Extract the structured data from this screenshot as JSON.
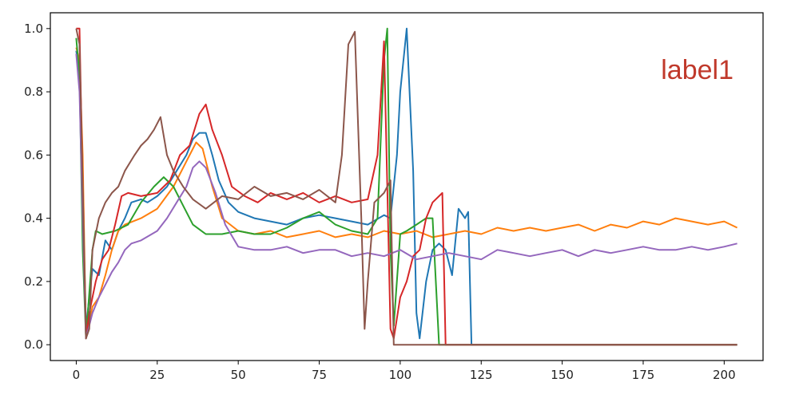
{
  "chart_data": {
    "type": "line",
    "title": "",
    "xlabel": "",
    "ylabel": "",
    "xlim": [
      -8,
      212
    ],
    "ylim": [
      -0.05,
      1.05
    ],
    "x_ticks": [
      0,
      25,
      50,
      75,
      100,
      125,
      150,
      175,
      200
    ],
    "y_ticks": [
      0.0,
      0.2,
      0.4,
      0.6,
      0.8,
      1.0
    ],
    "x_tick_labels": [
      "0",
      "25",
      "50",
      "75",
      "100",
      "125",
      "150",
      "175",
      "200"
    ],
    "y_tick_labels": [
      "0.0",
      "0.2",
      "0.4",
      "0.6",
      "0.8",
      "1.0"
    ],
    "grid": false,
    "legend": "none",
    "annotation": {
      "text": "label1",
      "color": "#c0392b"
    },
    "series": [
      {
        "color": "#1f77b4",
        "points": [
          [
            0,
            0.93
          ],
          [
            1,
            0.86
          ],
          [
            2,
            0.5
          ],
          [
            3,
            0.05
          ],
          [
            4,
            0.15
          ],
          [
            5,
            0.24
          ],
          [
            7,
            0.22
          ],
          [
            9,
            0.33
          ],
          [
            11,
            0.3
          ],
          [
            13,
            0.36
          ],
          [
            15,
            0.4
          ],
          [
            17,
            0.45
          ],
          [
            20,
            0.46
          ],
          [
            22,
            0.45
          ],
          [
            25,
            0.47
          ],
          [
            28,
            0.5
          ],
          [
            31,
            0.55
          ],
          [
            34,
            0.6
          ],
          [
            36,
            0.65
          ],
          [
            38,
            0.67
          ],
          [
            40,
            0.67
          ],
          [
            42,
            0.6
          ],
          [
            44,
            0.52
          ],
          [
            47,
            0.45
          ],
          [
            50,
            0.42
          ],
          [
            55,
            0.4
          ],
          [
            60,
            0.39
          ],
          [
            65,
            0.38
          ],
          [
            70,
            0.4
          ],
          [
            75,
            0.41
          ],
          [
            80,
            0.4
          ],
          [
            85,
            0.39
          ],
          [
            90,
            0.38
          ],
          [
            95,
            0.41
          ],
          [
            97,
            0.4
          ],
          [
            99,
            0.6
          ],
          [
            100,
            0.8
          ],
          [
            102,
            1.0
          ],
          [
            104,
            0.55
          ],
          [
            105,
            0.1
          ],
          [
            106,
            0.02
          ],
          [
            108,
            0.2
          ],
          [
            110,
            0.3
          ],
          [
            112,
            0.32
          ],
          [
            114,
            0.3
          ],
          [
            116,
            0.22
          ],
          [
            118,
            0.43
          ],
          [
            120,
            0.4
          ],
          [
            121,
            0.42
          ],
          [
            122,
            0.0
          ],
          [
            204,
            0.0
          ]
        ]
      },
      {
        "color": "#ff7f0e",
        "points": [
          [
            0,
            0.94
          ],
          [
            1,
            0.9
          ],
          [
            2,
            0.6
          ],
          [
            3,
            0.02
          ],
          [
            5,
            0.12
          ],
          [
            7,
            0.15
          ],
          [
            9,
            0.22
          ],
          [
            11,
            0.3
          ],
          [
            13,
            0.36
          ],
          [
            15,
            0.38
          ],
          [
            20,
            0.4
          ],
          [
            25,
            0.43
          ],
          [
            30,
            0.5
          ],
          [
            34,
            0.58
          ],
          [
            37,
            0.64
          ],
          [
            39,
            0.62
          ],
          [
            42,
            0.5
          ],
          [
            45,
            0.4
          ],
          [
            50,
            0.36
          ],
          [
            55,
            0.35
          ],
          [
            60,
            0.36
          ],
          [
            65,
            0.34
          ],
          [
            70,
            0.35
          ],
          [
            75,
            0.36
          ],
          [
            80,
            0.34
          ],
          [
            85,
            0.35
          ],
          [
            90,
            0.34
          ],
          [
            95,
            0.36
          ],
          [
            100,
            0.35
          ],
          [
            105,
            0.36
          ],
          [
            110,
            0.34
          ],
          [
            115,
            0.35
          ],
          [
            120,
            0.36
          ],
          [
            125,
            0.35
          ],
          [
            130,
            0.37
          ],
          [
            135,
            0.36
          ],
          [
            140,
            0.37
          ],
          [
            145,
            0.36
          ],
          [
            150,
            0.37
          ],
          [
            155,
            0.38
          ],
          [
            160,
            0.36
          ],
          [
            165,
            0.38
          ],
          [
            170,
            0.37
          ],
          [
            175,
            0.39
          ],
          [
            180,
            0.38
          ],
          [
            185,
            0.4
          ],
          [
            190,
            0.39
          ],
          [
            195,
            0.38
          ],
          [
            200,
            0.39
          ],
          [
            204,
            0.37
          ]
        ]
      },
      {
        "color": "#2ca02c",
        "points": [
          [
            0,
            0.97
          ],
          [
            1,
            0.85
          ],
          [
            2,
            0.3
          ],
          [
            3,
            0.02
          ],
          [
            5,
            0.3
          ],
          [
            6,
            0.36
          ],
          [
            8,
            0.35
          ],
          [
            12,
            0.36
          ],
          [
            16,
            0.38
          ],
          [
            20,
            0.45
          ],
          [
            24,
            0.5
          ],
          [
            27,
            0.53
          ],
          [
            30,
            0.5
          ],
          [
            33,
            0.44
          ],
          [
            36,
            0.38
          ],
          [
            40,
            0.35
          ],
          [
            45,
            0.35
          ],
          [
            50,
            0.36
          ],
          [
            55,
            0.35
          ],
          [
            60,
            0.35
          ],
          [
            65,
            0.37
          ],
          [
            70,
            0.4
          ],
          [
            75,
            0.42
          ],
          [
            80,
            0.38
          ],
          [
            85,
            0.36
          ],
          [
            90,
            0.35
          ],
          [
            93,
            0.4
          ],
          [
            95,
            0.9
          ],
          [
            96,
            1.0
          ],
          [
            97,
            0.3
          ],
          [
            98,
            0.06
          ],
          [
            100,
            0.35
          ],
          [
            102,
            0.36
          ],
          [
            105,
            0.38
          ],
          [
            108,
            0.4
          ],
          [
            110,
            0.4
          ],
          [
            112,
            0.0
          ],
          [
            204,
            0.0
          ]
        ]
      },
      {
        "color": "#d62728",
        "points": [
          [
            0,
            1.0
          ],
          [
            1,
            1.0
          ],
          [
            2,
            0.5
          ],
          [
            3,
            0.02
          ],
          [
            4,
            0.1
          ],
          [
            6,
            0.2
          ],
          [
            8,
            0.27
          ],
          [
            10,
            0.3
          ],
          [
            12,
            0.38
          ],
          [
            14,
            0.47
          ],
          [
            16,
            0.48
          ],
          [
            20,
            0.47
          ],
          [
            25,
            0.48
          ],
          [
            29,
            0.52
          ],
          [
            32,
            0.6
          ],
          [
            35,
            0.63
          ],
          [
            38,
            0.73
          ],
          [
            40,
            0.76
          ],
          [
            42,
            0.68
          ],
          [
            45,
            0.6
          ],
          [
            48,
            0.5
          ],
          [
            52,
            0.47
          ],
          [
            56,
            0.45
          ],
          [
            60,
            0.48
          ],
          [
            65,
            0.46
          ],
          [
            70,
            0.48
          ],
          [
            75,
            0.45
          ],
          [
            80,
            0.47
          ],
          [
            85,
            0.45
          ],
          [
            90,
            0.46
          ],
          [
            93,
            0.6
          ],
          [
            95,
            0.96
          ],
          [
            96,
            0.5
          ],
          [
            97,
            0.05
          ],
          [
            98,
            0.02
          ],
          [
            100,
            0.15
          ],
          [
            102,
            0.2
          ],
          [
            104,
            0.28
          ],
          [
            106,
            0.3
          ],
          [
            108,
            0.4
          ],
          [
            110,
            0.45
          ],
          [
            113,
            0.48
          ],
          [
            114,
            0.0
          ],
          [
            204,
            0.0
          ]
        ]
      },
      {
        "color": "#9467bd",
        "points": [
          [
            0,
            0.92
          ],
          [
            1,
            0.8
          ],
          [
            2,
            0.4
          ],
          [
            3,
            0.02
          ],
          [
            5,
            0.1
          ],
          [
            7,
            0.15
          ],
          [
            9,
            0.19
          ],
          [
            11,
            0.23
          ],
          [
            13,
            0.26
          ],
          [
            15,
            0.3
          ],
          [
            17,
            0.32
          ],
          [
            20,
            0.33
          ],
          [
            25,
            0.36
          ],
          [
            28,
            0.4
          ],
          [
            31,
            0.45
          ],
          [
            34,
            0.5
          ],
          [
            36,
            0.56
          ],
          [
            38,
            0.58
          ],
          [
            40,
            0.56
          ],
          [
            43,
            0.48
          ],
          [
            46,
            0.38
          ],
          [
            50,
            0.31
          ],
          [
            55,
            0.3
          ],
          [
            60,
            0.3
          ],
          [
            65,
            0.31
          ],
          [
            70,
            0.29
          ],
          [
            75,
            0.3
          ],
          [
            80,
            0.3
          ],
          [
            85,
            0.28
          ],
          [
            90,
            0.29
          ],
          [
            95,
            0.28
          ],
          [
            100,
            0.3
          ],
          [
            105,
            0.27
          ],
          [
            110,
            0.28
          ],
          [
            115,
            0.29
          ],
          [
            120,
            0.28
          ],
          [
            125,
            0.27
          ],
          [
            130,
            0.3
          ],
          [
            135,
            0.29
          ],
          [
            140,
            0.28
          ],
          [
            145,
            0.29
          ],
          [
            150,
            0.3
          ],
          [
            155,
            0.28
          ],
          [
            160,
            0.3
          ],
          [
            165,
            0.29
          ],
          [
            170,
            0.3
          ],
          [
            175,
            0.31
          ],
          [
            180,
            0.3
          ],
          [
            185,
            0.3
          ],
          [
            190,
            0.31
          ],
          [
            195,
            0.3
          ],
          [
            200,
            0.31
          ],
          [
            204,
            0.32
          ]
        ]
      },
      {
        "color": "#8c564b",
        "points": [
          [
            0,
            1.0
          ],
          [
            1,
            0.95
          ],
          [
            2,
            0.5
          ],
          [
            3,
            0.02
          ],
          [
            4,
            0.05
          ],
          [
            5,
            0.3
          ],
          [
            7,
            0.4
          ],
          [
            9,
            0.45
          ],
          [
            11,
            0.48
          ],
          [
            13,
            0.5
          ],
          [
            15,
            0.55
          ],
          [
            18,
            0.6
          ],
          [
            20,
            0.63
          ],
          [
            22,
            0.65
          ],
          [
            24,
            0.68
          ],
          [
            26,
            0.72
          ],
          [
            28,
            0.6
          ],
          [
            30,
            0.55
          ],
          [
            33,
            0.5
          ],
          [
            36,
            0.46
          ],
          [
            40,
            0.43
          ],
          [
            45,
            0.47
          ],
          [
            50,
            0.46
          ],
          [
            55,
            0.5
          ],
          [
            60,
            0.47
          ],
          [
            65,
            0.48
          ],
          [
            70,
            0.46
          ],
          [
            75,
            0.49
          ],
          [
            80,
            0.45
          ],
          [
            82,
            0.6
          ],
          [
            84,
            0.95
          ],
          [
            86,
            0.99
          ],
          [
            88,
            0.4
          ],
          [
            89,
            0.05
          ],
          [
            90,
            0.2
          ],
          [
            92,
            0.45
          ],
          [
            95,
            0.48
          ],
          [
            97,
            0.52
          ],
          [
            98,
            0.0
          ],
          [
            204,
            0.0
          ]
        ]
      }
    ]
  }
}
